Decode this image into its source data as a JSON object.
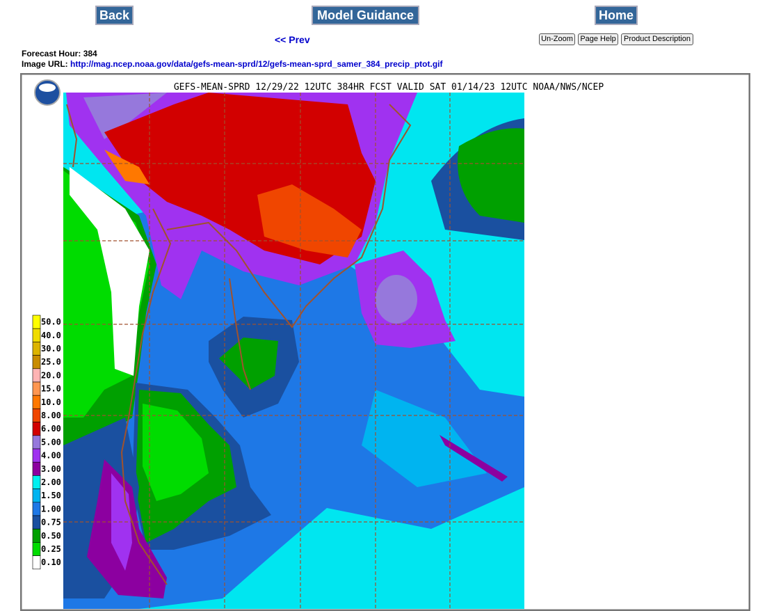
{
  "nav": {
    "back": "Back",
    "model_guidance": "Model Guidance",
    "home": "Home",
    "prev": "<< Prev",
    "un_zoom": "Un-Zoom",
    "page_help": "Page Help",
    "product_description": "Product Description"
  },
  "info": {
    "forecast_hour_label": "Forecast Hour:",
    "forecast_hour": 384,
    "image_url_label": "Image URL:",
    "image_url": "http://mag.ncep.noaa.gov/data/gefs-mean-sprd/12/gefs-mean-sprd_samer_384_precip_ptot.gif"
  },
  "map": {
    "title": "GEFS-MEAN-SPRD 12/29/22 12UTC 384HR FCST VALID SAT 01/14/23 12UTC NOAA/NWS/NCEP",
    "legend": [
      {
        "label": "50.0",
        "color": "#ffff00"
      },
      {
        "label": "40.0",
        "color": "#f0dc00"
      },
      {
        "label": "30.0",
        "color": "#dcb400"
      },
      {
        "label": "25.0",
        "color": "#c88c00"
      },
      {
        "label": "20.0",
        "color": "#ffb4b4"
      },
      {
        "label": "15.0",
        "color": "#ff9650"
      },
      {
        "label": "10.0",
        "color": "#ff7800"
      },
      {
        "label": "8.00",
        "color": "#f04600"
      },
      {
        "label": "6.00",
        "color": "#d20000"
      },
      {
        "label": "5.00",
        "color": "#9678dc"
      },
      {
        "label": "4.00",
        "color": "#a032f0"
      },
      {
        "label": "3.00",
        "color": "#8c00a0"
      },
      {
        "label": "2.00",
        "color": "#00f0f0"
      },
      {
        "label": "1.50",
        "color": "#00b4f0"
      },
      {
        "label": "1.00",
        "color": "#1e78e6"
      },
      {
        "label": "0.75",
        "color": "#1a50a0"
      },
      {
        "label": "0.50",
        "color": "#00a000"
      },
      {
        "label": "0.25",
        "color": "#00dc00"
      },
      {
        "label": "0.10",
        "color": "#ffffff"
      }
    ]
  }
}
